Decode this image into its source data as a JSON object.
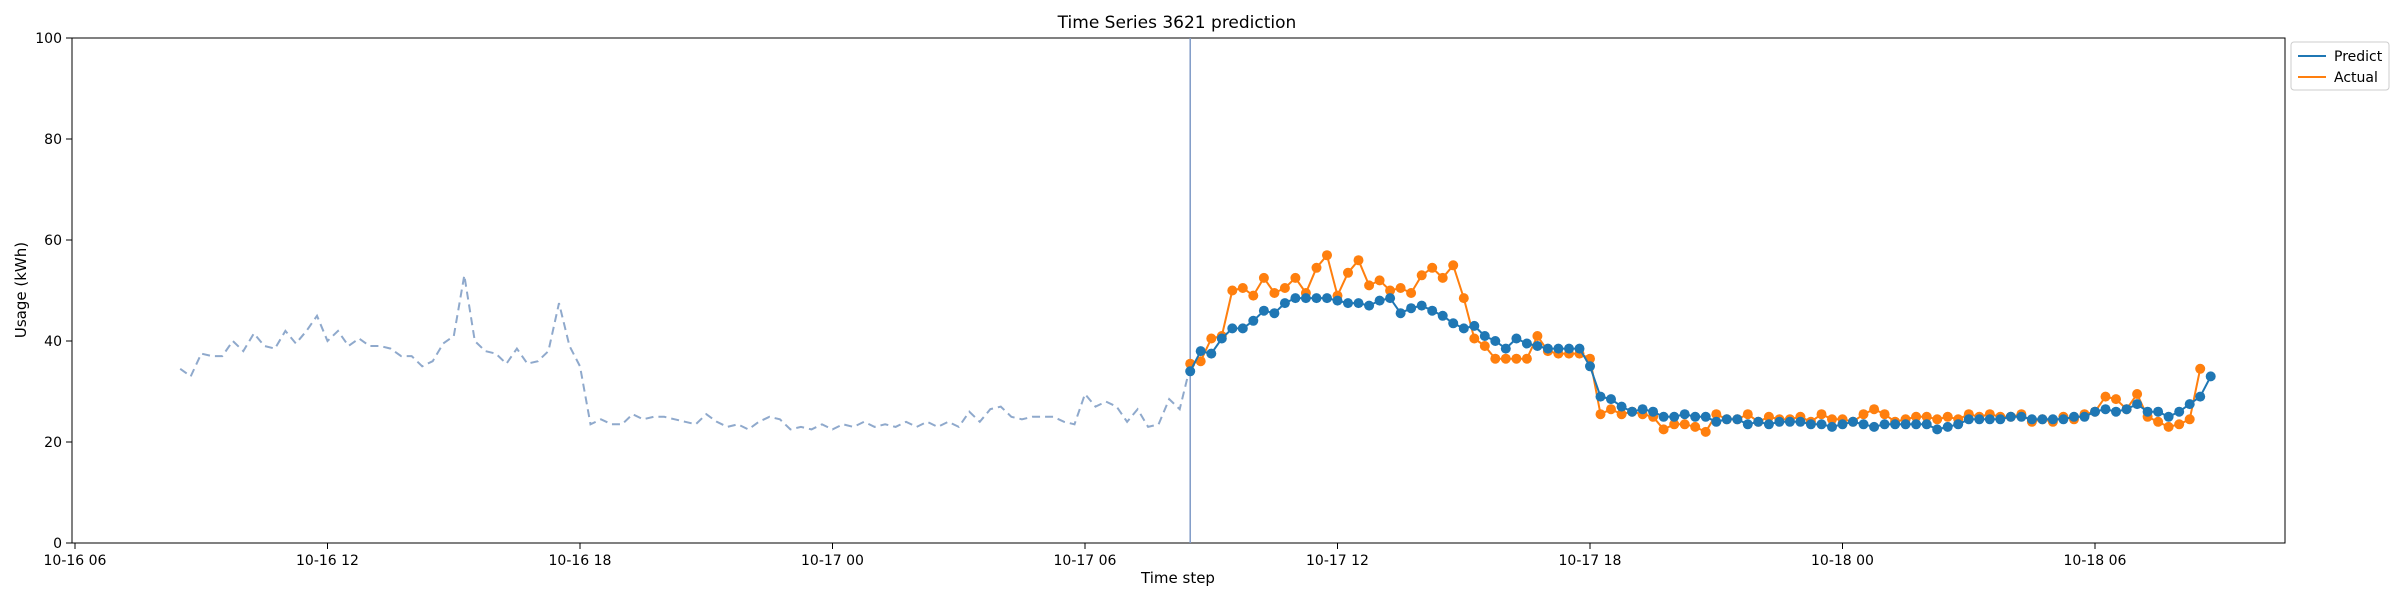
{
  "chart_data": {
    "type": "line",
    "title": "Time Series 3621 prediction",
    "xlabel": "Time step",
    "ylabel": "Usage (kWh)",
    "ylim": [
      0,
      100
    ],
    "xlim": [
      "10-16 06",
      "10-18 12"
    ],
    "x_ticks": [
      "10-16 06",
      "10-16 12",
      "10-16 18",
      "10-17 00",
      "10-17 06",
      "10-17 12",
      "10-17 18",
      "10-18 00",
      "10-18 06"
    ],
    "y_ticks": [
      "0",
      "20",
      "40",
      "60",
      "80",
      "100"
    ],
    "grid": false,
    "legend_position": "top-right (outside)",
    "prediction_start": "10-17 08:30",
    "colors": {
      "predict": "#1f77b4",
      "actual": "#ff7f0e",
      "history": "#8fa9cc",
      "divider": "#7f9ac7"
    },
    "history": {
      "x_start": "10-16 08:30",
      "x_end": "10-17 08:30",
      "step_minutes": 15,
      "style": "dashed",
      "values": [
        34.5,
        33,
        37.5,
        37,
        37,
        40,
        38,
        41.5,
        39,
        38.5,
        42,
        39.5,
        42,
        45,
        40,
        42,
        39,
        40.5,
        39,
        39,
        38.5,
        37,
        37,
        35,
        36,
        39.5,
        41,
        53,
        40,
        38,
        37.5,
        35.5,
        38.5,
        35.5,
        36,
        38,
        47.5,
        39,
        35,
        23.5,
        24.5,
        23.5,
        23.5,
        25.5,
        24.5,
        25,
        25,
        24.5,
        24,
        23.5,
        25.5,
        24,
        23,
        23.5,
        22.5,
        24,
        25,
        24.5,
        22.5,
        23,
        22.5,
        23.5,
        22.5,
        23.5,
        23,
        24,
        23,
        23.5,
        23,
        24,
        23,
        24,
        23,
        24,
        23,
        26,
        24,
        26.5,
        27,
        25,
        24.5,
        25,
        25,
        25,
        24,
        23.5,
        29.5,
        27,
        28,
        27,
        24,
        26.5,
        23,
        23.5,
        28.5,
        26.5,
        35
      ]
    },
    "series": [
      {
        "name": "Predict",
        "x_start": "10-17 08:30",
        "step_minutes": 15,
        "values": [
          34,
          38,
          37.5,
          40.5,
          42.5,
          42.5,
          44,
          46,
          45.5,
          47.5,
          48.5,
          48.5,
          48.5,
          48.5,
          48,
          47.5,
          47.5,
          47,
          48,
          48.5,
          45.5,
          46.5,
          47,
          46,
          45,
          43.5,
          42.5,
          43,
          41,
          40,
          38.5,
          40.5,
          39.5,
          39,
          38.5,
          38.5,
          38.5,
          38.5,
          35,
          29,
          28.5,
          27,
          26,
          26.5,
          26,
          25,
          25,
          25.5,
          25,
          25,
          24,
          24.5,
          24.5,
          23.5,
          24,
          23.5,
          24,
          24,
          24,
          23.5,
          23.5,
          23,
          23.5,
          24,
          23.5,
          23,
          23.5,
          23.5,
          23.5,
          23.5,
          23.5,
          22.5,
          23,
          23.5,
          24.5,
          24.5,
          24.5,
          24.5,
          25,
          25,
          24.5,
          24.5,
          24.5,
          24.5,
          25,
          25,
          26,
          26.5,
          26,
          26.5,
          27.5,
          26,
          26,
          25,
          26,
          27.5,
          29,
          33
        ]
      },
      {
        "name": "Actual",
        "x_start": "10-17 08:30",
        "step_minutes": 15,
        "values": [
          35.5,
          36,
          40.5,
          41,
          50,
          50.5,
          49,
          52.5,
          49.5,
          50.5,
          52.5,
          49.5,
          54.5,
          57,
          49,
          53.5,
          56,
          51,
          52,
          50,
          50.5,
          49.5,
          53,
          54.5,
          52.5,
          55,
          48.5,
          40.5,
          39,
          36.5,
          36.5,
          36.5,
          36.5,
          41,
          38,
          37.5,
          37.5,
          37.5,
          36.5,
          25.5,
          26.5,
          25.5,
          26,
          25.5,
          25,
          22.5,
          23.5,
          23.5,
          23,
          22,
          25.5,
          24.5,
          24.5,
          25.5,
          24,
          25,
          24.5,
          24.5,
          25,
          24,
          25.5,
          24.5,
          24.5,
          24,
          25.5,
          26.5,
          25.5,
          24,
          24.5,
          25,
          25,
          24.5,
          25,
          24.5,
          25.5,
          25,
          25.5,
          25,
          25,
          25.5,
          24,
          24.5,
          24,
          25,
          24.5,
          25.5,
          26,
          29,
          28.5,
          26.5,
          29.5,
          25,
          24,
          23,
          23.5,
          24.5,
          34.5
        ]
      }
    ]
  }
}
